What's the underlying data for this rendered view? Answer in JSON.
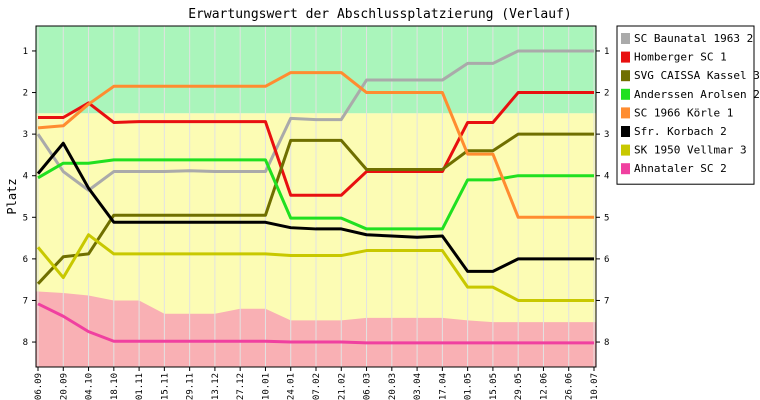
{
  "chart_data": {
    "type": "line",
    "title": "Erwartungswert der Abschlussplatzierung (Verlauf)",
    "ylabel": "Platz",
    "xlabel": "",
    "ylim": [
      8.6,
      0.4
    ],
    "y_inverted": true,
    "y_ticks": [
      1,
      2,
      3,
      4,
      5,
      6,
      7,
      8
    ],
    "x": [
      "06.09",
      "20.09",
      "04.10",
      "18.10",
      "01.11",
      "15.11",
      "29.11",
      "13.12",
      "27.12",
      "10.01",
      "24.01",
      "07.02",
      "21.02",
      "06.03",
      "20.03",
      "03.04",
      "17.04",
      "01.05",
      "15.05",
      "29.05",
      "12.06",
      "26.06",
      "10.07"
    ],
    "legend_position": "right",
    "bands": [
      {
        "name": "promotion",
        "from": 0.4,
        "to": 2.5,
        "color": "#aaf5bb"
      },
      {
        "name": "middle",
        "from": 2.5,
        "to": 8.6,
        "color": "#fcfcb4"
      },
      {
        "name": "relegation",
        "color": "#f9b0b4",
        "upper": [
          6.78,
          6.82,
          6.88,
          7.0,
          7.0,
          7.32,
          7.32,
          7.32,
          7.2,
          7.2,
          7.48,
          7.48,
          7.48,
          7.42,
          7.42,
          7.42,
          7.42,
          7.48,
          7.52,
          7.52,
          7.52,
          7.52,
          7.52
        ]
      }
    ],
    "series": [
      {
        "name": "SC Baunatal 1963 2",
        "color": "#aaaaaa",
        "values": [
          3.0,
          3.9,
          4.35,
          3.9,
          3.9,
          3.9,
          3.88,
          3.9,
          3.9,
          3.9,
          2.62,
          2.65,
          2.65,
          1.7,
          1.7,
          1.7,
          1.7,
          1.3,
          1.3,
          1.0,
          1.0,
          1.0,
          1.0
        ]
      },
      {
        "name": "Homberger SC 1",
        "color": "#e81010",
        "values": [
          2.6,
          2.6,
          2.25,
          2.72,
          2.7,
          2.7,
          2.7,
          2.7,
          2.7,
          2.7,
          4.47,
          4.47,
          4.47,
          3.9,
          3.9,
          3.9,
          3.9,
          2.72,
          2.72,
          2.0,
          2.0,
          2.0,
          2.0
        ]
      },
      {
        "name": "SVG CAISSA Kassel 3",
        "color": "#6f6f00",
        "values": [
          6.6,
          5.95,
          5.88,
          4.95,
          4.95,
          4.95,
          4.95,
          4.95,
          4.95,
          4.95,
          3.15,
          3.15,
          3.15,
          3.85,
          3.85,
          3.85,
          3.85,
          3.4,
          3.4,
          3.0,
          3.0,
          3.0,
          3.0
        ]
      },
      {
        "name": "Anderssen Arolsen 2",
        "color": "#20e020",
        "values": [
          4.05,
          3.7,
          3.7,
          3.62,
          3.62,
          3.62,
          3.62,
          3.62,
          3.62,
          3.62,
          5.02,
          5.02,
          5.02,
          5.28,
          5.28,
          5.28,
          5.28,
          4.1,
          4.1,
          4.0,
          4.0,
          4.0,
          4.0
        ]
      },
      {
        "name": "SC 1966 Körle 1",
        "color": "#ff8c30",
        "values": [
          2.85,
          2.8,
          2.28,
          1.85,
          1.85,
          1.85,
          1.85,
          1.85,
          1.85,
          1.85,
          1.52,
          1.52,
          1.52,
          2.0,
          2.0,
          2.0,
          2.0,
          3.48,
          3.48,
          5.0,
          5.0,
          5.0,
          5.0
        ]
      },
      {
        "name": "Sfr. Korbach 2",
        "color": "#000000",
        "values": [
          3.95,
          3.22,
          4.3,
          5.12,
          5.12,
          5.12,
          5.12,
          5.12,
          5.12,
          5.12,
          5.25,
          5.28,
          5.28,
          5.42,
          5.45,
          5.48,
          5.45,
          6.3,
          6.3,
          6.0,
          6.0,
          6.0,
          6.0
        ]
      },
      {
        "name": "SK 1950 Vellmar 3",
        "color": "#c8c800",
        "values": [
          5.72,
          6.45,
          5.42,
          5.88,
          5.88,
          5.88,
          5.88,
          5.88,
          5.88,
          5.88,
          5.92,
          5.92,
          5.92,
          5.8,
          5.8,
          5.8,
          5.8,
          6.68,
          6.68,
          7.0,
          7.0,
          7.0,
          7.0
        ]
      },
      {
        "name": "Ahnataler SC 2",
        "color": "#f040a0",
        "values": [
          7.08,
          7.38,
          7.75,
          7.98,
          7.98,
          7.98,
          7.98,
          7.98,
          7.98,
          7.98,
          8.0,
          8.0,
          8.0,
          8.02,
          8.02,
          8.02,
          8.02,
          8.02,
          8.02,
          8.02,
          8.02,
          8.02,
          8.02
        ]
      }
    ]
  }
}
